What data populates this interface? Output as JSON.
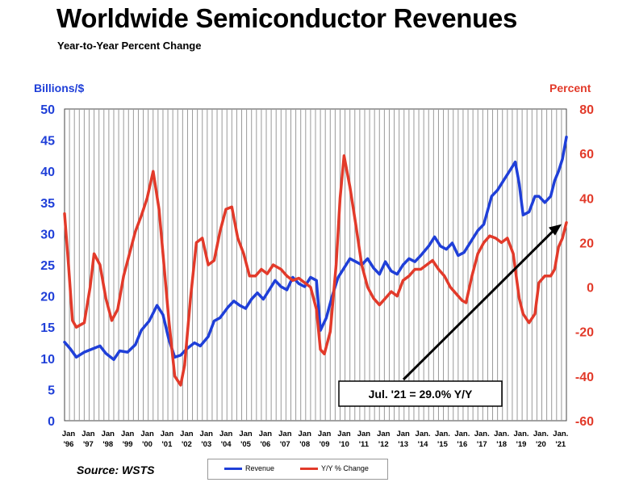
{
  "header": {
    "title": "Worldwide Semiconductor Revenues",
    "subtitle": "Year-to-Year Percent Change"
  },
  "footer": {
    "source": "Source: WSTS"
  },
  "colors": {
    "revenue": "#1f3fd8",
    "yoy": "#e23a2a",
    "grid": "#9a9a9a",
    "annotation": "#000000"
  },
  "chart_data": {
    "type": "line",
    "ylabel_left": "Billions/$",
    "ylabel_right": "Percent",
    "ylim_left": [
      0,
      50
    ],
    "ylim_right": [
      -60,
      80
    ],
    "yticks_left": [
      "0",
      "5",
      "10",
      "15",
      "20",
      "25",
      "30",
      "35",
      "40",
      "45",
      "50"
    ],
    "yticks_right": [
      "-60",
      "-40",
      "-20",
      "0",
      "20",
      "40",
      "60",
      "80"
    ],
    "x_range": [
      1996.0,
      2021.5
    ],
    "grid": "vertical lines only",
    "legend_position": "bottom",
    "x_tick_labels": [
      {
        "top": "Jan",
        "bottom": "'96",
        "year": 1996
      },
      {
        "top": "Jan",
        "bottom": "'97",
        "year": 1997
      },
      {
        "top": "Jan",
        "bottom": "'98",
        "year": 1998
      },
      {
        "top": "Jan",
        "bottom": "'99",
        "year": 1999
      },
      {
        "top": "Jan",
        "bottom": "'00",
        "year": 2000
      },
      {
        "top": "Jan",
        "bottom": "'01",
        "year": 2001
      },
      {
        "top": "Jan",
        "bottom": "'02",
        "year": 2002
      },
      {
        "top": "Jan",
        "bottom": "'03",
        "year": 2003
      },
      {
        "top": "Jan",
        "bottom": "'04",
        "year": 2004
      },
      {
        "top": "Jan",
        "bottom": "'05",
        "year": 2005
      },
      {
        "top": "Jan",
        "bottom": "'06",
        "year": 2006
      },
      {
        "top": "Jan",
        "bottom": "'07",
        "year": 2007
      },
      {
        "top": "Jan",
        "bottom": "'08",
        "year": 2008
      },
      {
        "top": "Jan",
        "bottom": "'09",
        "year": 2009
      },
      {
        "top": "Jan",
        "bottom": "'10",
        "year": 2010
      },
      {
        "top": "Jan",
        "bottom": "'11",
        "year": 2011
      },
      {
        "top": "Jan",
        "bottom": "'12",
        "year": 2012
      },
      {
        "top": "Jan",
        "bottom": "'13",
        "year": 2013
      },
      {
        "top": "Jan.",
        "bottom": "'14",
        "year": 2014
      },
      {
        "top": "Jan.",
        "bottom": "'15",
        "year": 2015
      },
      {
        "top": "Jan.",
        "bottom": "'16",
        "year": 2016
      },
      {
        "top": "Jan.",
        "bottom": "'17",
        "year": 2017
      },
      {
        "top": "Jan.",
        "bottom": "'18",
        "year": 2018
      },
      {
        "top": "Jan.",
        "bottom": "'19",
        "year": 2019
      },
      {
        "top": "Jan.",
        "bottom": "'20",
        "year": 2020
      },
      {
        "top": "Jan.",
        "bottom": "'21",
        "year": 2021
      }
    ],
    "series": [
      {
        "name": "Revenue",
        "axis": "left",
        "points": [
          [
            1996.0,
            12.6
          ],
          [
            1996.3,
            11.5
          ],
          [
            1996.6,
            10.2
          ],
          [
            1997.0,
            11.0
          ],
          [
            1997.4,
            11.5
          ],
          [
            1997.8,
            12.0
          ],
          [
            1998.1,
            10.8
          ],
          [
            1998.5,
            9.8
          ],
          [
            1998.8,
            11.2
          ],
          [
            1999.2,
            11.0
          ],
          [
            1999.6,
            12.2
          ],
          [
            1999.9,
            14.5
          ],
          [
            2000.3,
            16.0
          ],
          [
            2000.7,
            18.5
          ],
          [
            2001.0,
            17.0
          ],
          [
            2001.3,
            13.0
          ],
          [
            2001.6,
            10.2
          ],
          [
            2001.9,
            10.5
          ],
          [
            2002.2,
            11.5
          ],
          [
            2002.6,
            12.5
          ],
          [
            2002.9,
            12.0
          ],
          [
            2003.3,
            13.5
          ],
          [
            2003.6,
            16.0
          ],
          [
            2003.9,
            16.5
          ],
          [
            2004.3,
            18.2
          ],
          [
            2004.6,
            19.2
          ],
          [
            2004.9,
            18.5
          ],
          [
            2005.2,
            18.0
          ],
          [
            2005.5,
            19.5
          ],
          [
            2005.8,
            20.5
          ],
          [
            2006.1,
            19.5
          ],
          [
            2006.4,
            21.0
          ],
          [
            2006.7,
            22.5
          ],
          [
            2007.0,
            21.5
          ],
          [
            2007.3,
            21.0
          ],
          [
            2007.6,
            23.0
          ],
          [
            2007.9,
            22.0
          ],
          [
            2008.2,
            21.5
          ],
          [
            2008.5,
            23.0
          ],
          [
            2008.8,
            22.5
          ],
          [
            2009.0,
            14.5
          ],
          [
            2009.3,
            16.5
          ],
          [
            2009.6,
            20.0
          ],
          [
            2009.9,
            23.0
          ],
          [
            2010.2,
            24.5
          ],
          [
            2010.5,
            26.0
          ],
          [
            2010.8,
            25.5
          ],
          [
            2011.1,
            25.0
          ],
          [
            2011.4,
            26.0
          ],
          [
            2011.7,
            24.5
          ],
          [
            2012.0,
            23.5
          ],
          [
            2012.3,
            25.5
          ],
          [
            2012.6,
            24.0
          ],
          [
            2012.9,
            23.5
          ],
          [
            2013.2,
            25.0
          ],
          [
            2013.5,
            26.0
          ],
          [
            2013.8,
            25.5
          ],
          [
            2014.1,
            26.5
          ],
          [
            2014.5,
            28.0
          ],
          [
            2014.8,
            29.5
          ],
          [
            2015.1,
            28.0
          ],
          [
            2015.4,
            27.5
          ],
          [
            2015.7,
            28.5
          ],
          [
            2016.0,
            26.5
          ],
          [
            2016.3,
            27.0
          ],
          [
            2016.7,
            29.0
          ],
          [
            2017.0,
            30.5
          ],
          [
            2017.3,
            31.5
          ],
          [
            2017.7,
            36.0
          ],
          [
            2018.0,
            37.0
          ],
          [
            2018.3,
            38.5
          ],
          [
            2018.6,
            40.0
          ],
          [
            2018.9,
            41.5
          ],
          [
            2019.1,
            38.0
          ],
          [
            2019.3,
            33.0
          ],
          [
            2019.6,
            33.5
          ],
          [
            2019.9,
            36.0
          ],
          [
            2020.1,
            36.0
          ],
          [
            2020.4,
            35.0
          ],
          [
            2020.7,
            36.0
          ],
          [
            2020.9,
            38.5
          ],
          [
            2021.1,
            40.0
          ],
          [
            2021.3,
            42.0
          ],
          [
            2021.5,
            45.5
          ]
        ]
      },
      {
        "name": "Y/Y % Change",
        "axis": "right",
        "points": [
          [
            1996.0,
            33
          ],
          [
            1996.2,
            10
          ],
          [
            1996.4,
            -15
          ],
          [
            1996.6,
            -18
          ],
          [
            1997.0,
            -16
          ],
          [
            1997.3,
            0
          ],
          [
            1997.5,
            15
          ],
          [
            1997.8,
            10
          ],
          [
            1998.1,
            -5
          ],
          [
            1998.4,
            -15
          ],
          [
            1998.7,
            -10
          ],
          [
            1999.0,
            5
          ],
          [
            1999.3,
            15
          ],
          [
            1999.6,
            25
          ],
          [
            1999.9,
            32
          ],
          [
            2000.2,
            40
          ],
          [
            2000.5,
            52
          ],
          [
            2000.8,
            35
          ],
          [
            2001.0,
            15
          ],
          [
            2001.3,
            -15
          ],
          [
            2001.6,
            -40
          ],
          [
            2001.9,
            -44
          ],
          [
            2002.1,
            -35
          ],
          [
            2002.4,
            -5
          ],
          [
            2002.7,
            20
          ],
          [
            2003.0,
            22
          ],
          [
            2003.3,
            10
          ],
          [
            2003.6,
            12
          ],
          [
            2003.9,
            25
          ],
          [
            2004.2,
            35
          ],
          [
            2004.5,
            36
          ],
          [
            2004.8,
            22
          ],
          [
            2005.1,
            15
          ],
          [
            2005.4,
            5
          ],
          [
            2005.7,
            5
          ],
          [
            2006.0,
            8
          ],
          [
            2006.3,
            6
          ],
          [
            2006.6,
            10
          ],
          [
            2007.0,
            8
          ],
          [
            2007.3,
            5
          ],
          [
            2007.6,
            3
          ],
          [
            2007.9,
            4
          ],
          [
            2008.2,
            2
          ],
          [
            2008.5,
            0
          ],
          [
            2008.8,
            -10
          ],
          [
            2009.0,
            -28
          ],
          [
            2009.2,
            -30
          ],
          [
            2009.5,
            -20
          ],
          [
            2009.8,
            10
          ],
          [
            2010.0,
            40
          ],
          [
            2010.2,
            59
          ],
          [
            2010.5,
            45
          ],
          [
            2010.8,
            28
          ],
          [
            2011.1,
            10
          ],
          [
            2011.4,
            0
          ],
          [
            2011.7,
            -5
          ],
          [
            2012.0,
            -8
          ],
          [
            2012.3,
            -5
          ],
          [
            2012.6,
            -2
          ],
          [
            2012.9,
            -4
          ],
          [
            2013.2,
            3
          ],
          [
            2013.5,
            5
          ],
          [
            2013.8,
            8
          ],
          [
            2014.1,
            8
          ],
          [
            2014.4,
            10
          ],
          [
            2014.7,
            12
          ],
          [
            2015.0,
            8
          ],
          [
            2015.3,
            5
          ],
          [
            2015.6,
            0
          ],
          [
            2015.9,
            -3
          ],
          [
            2016.2,
            -6
          ],
          [
            2016.4,
            -7
          ],
          [
            2016.7,
            5
          ],
          [
            2017.0,
            15
          ],
          [
            2017.3,
            20
          ],
          [
            2017.6,
            23
          ],
          [
            2017.9,
            22
          ],
          [
            2018.2,
            20
          ],
          [
            2018.5,
            22
          ],
          [
            2018.8,
            15
          ],
          [
            2019.1,
            -5
          ],
          [
            2019.3,
            -12
          ],
          [
            2019.6,
            -16
          ],
          [
            2019.9,
            -12
          ],
          [
            2020.1,
            2
          ],
          [
            2020.4,
            5
          ],
          [
            2020.7,
            5
          ],
          [
            2020.9,
            8
          ],
          [
            2021.1,
            18
          ],
          [
            2021.3,
            22
          ],
          [
            2021.5,
            29
          ]
        ]
      }
    ],
    "annotation": {
      "text": "Jul. '21 = 29.0% Y/Y",
      "target": {
        "x": 2021.5,
        "y": 29.0,
        "axis": "right"
      }
    }
  }
}
